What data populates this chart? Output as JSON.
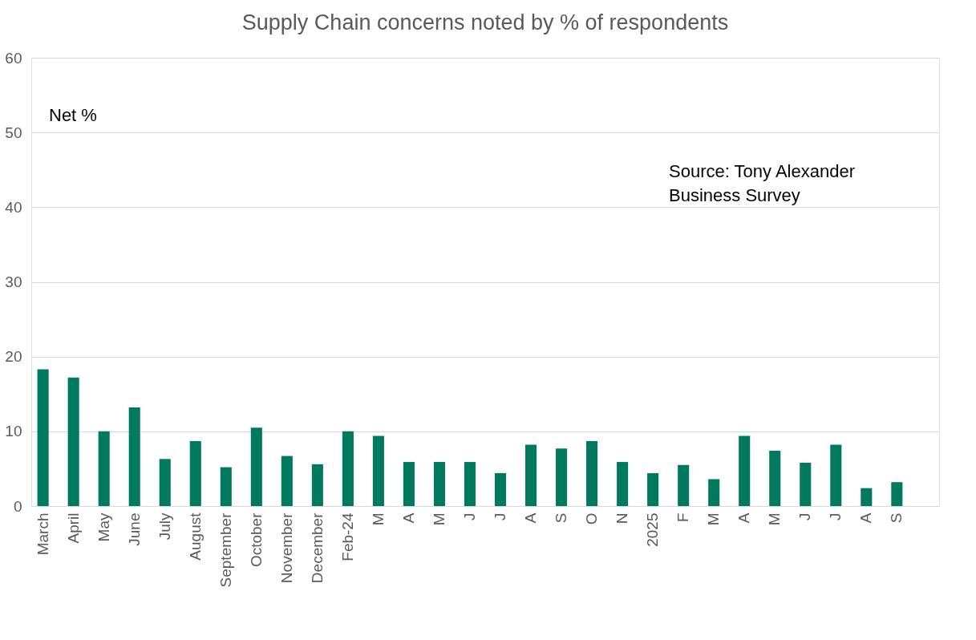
{
  "chart_data": {
    "type": "bar",
    "title": "Supply Chain concerns noted by % of respondents",
    "categories": [
      "March",
      "April",
      "May",
      "June",
      "July",
      "August",
      "September",
      "October",
      "November",
      "December",
      "Feb-24",
      "M",
      "A",
      "M",
      "J",
      "J",
      "A",
      "S",
      "O",
      "N",
      "2025",
      "F",
      "M",
      "A",
      "M",
      "J",
      "J",
      "A",
      "S",
      null
    ],
    "values": [
      18.3,
      17.2,
      10.0,
      13.2,
      6.3,
      8.7,
      5.2,
      10.5,
      6.7,
      5.6,
      10.0,
      9.4,
      5.9,
      5.9,
      5.9,
      4.4,
      8.2,
      7.7,
      8.7,
      5.9,
      4.4,
      5.5,
      3.6,
      9.4,
      7.4,
      5.8,
      8.2,
      2.4,
      3.2,
      null
    ],
    "color": "#007a5e",
    "ylim": [
      0,
      60
    ],
    "yticks": [
      0,
      10,
      20,
      30,
      40,
      50,
      60
    ],
    "grid": "y",
    "annotations": [
      "Net %",
      "Source: Tony Alexander Business Survey"
    ]
  }
}
